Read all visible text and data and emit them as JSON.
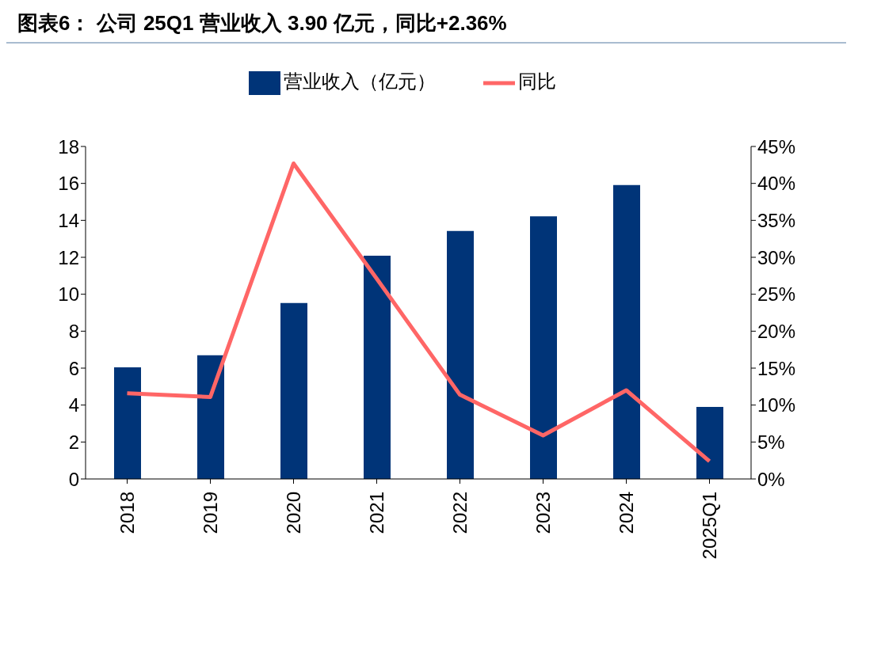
{
  "chart_data": {
    "type": "bar",
    "title": "图表6：  公司 25Q1 营业收入 3.90 亿元，同比+2.36%",
    "categories": [
      "2018",
      "2019",
      "2020",
      "2021",
      "2022",
      "2023",
      "2024",
      "2025Q1"
    ],
    "series": [
      {
        "name": "营业收入（亿元）",
        "color": "#003478",
        "values": [
          6.04,
          6.7,
          9.52,
          12.09,
          13.43,
          14.22,
          15.91,
          3.9
        ]
      },
      {
        "name": "同比",
        "type": "line",
        "axis": "y2",
        "color": "#ff6666",
        "values": [
          11.6,
          11.1,
          42.7,
          27.1,
          11.4,
          5.9,
          12.0,
          2.4
        ]
      }
    ],
    "ylim": [
      0,
      18
    ],
    "yticks": [
      0,
      2,
      4,
      6,
      8,
      10,
      12,
      14,
      16,
      18
    ],
    "y2lim": [
      0,
      45
    ],
    "y2ticks": [
      {
        "value": 0,
        "label": "0%"
      },
      {
        "value": 5,
        "label": "5%"
      },
      {
        "value": 10,
        "label": "10%"
      },
      {
        "value": 15,
        "label": "15%"
      },
      {
        "value": 20,
        "label": "20%"
      },
      {
        "value": 25,
        "label": "25%"
      },
      {
        "value": 30,
        "label": "30%"
      },
      {
        "value": 35,
        "label": "35%"
      },
      {
        "value": 40,
        "label": "40%"
      },
      {
        "value": 45,
        "label": "45%"
      }
    ],
    "grid": false,
    "legend": "top",
    "marker": "none",
    "line_style": "solid"
  }
}
